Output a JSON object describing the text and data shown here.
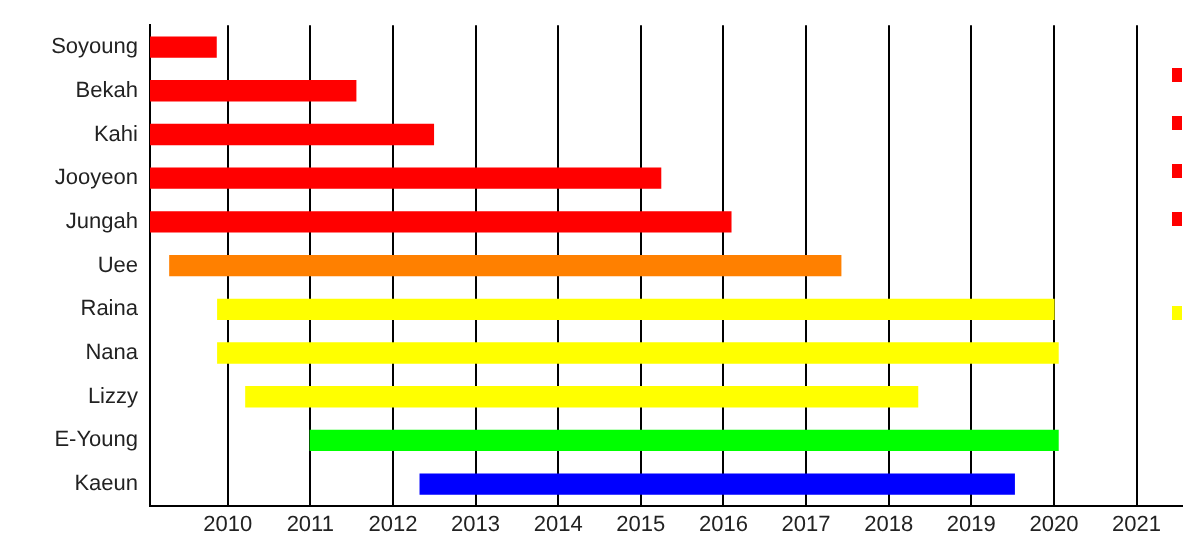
{
  "chart_data": {
    "type": "bar",
    "orientation": "horizontal",
    "categories": [
      "Soyoung",
      "Bekah",
      "Kahi",
      "Jooyeon",
      "Jungah",
      "Uee",
      "Raina",
      "Nana",
      "Lizzy",
      "E-Young",
      "Kaeun"
    ],
    "base": [
      2009.06,
      2009.06,
      2009.06,
      2009.06,
      2009.06,
      2009.3,
      2009.88,
      2009.88,
      2010.22,
      2011.0,
      2012.33
    ],
    "values": [
      0.8,
      2.49,
      3.43,
      6.18,
      7.03,
      8.12,
      10.12,
      10.17,
      8.13,
      9.05,
      7.19
    ],
    "colors": [
      "#ff0000",
      "#ff0000",
      "#ff0000",
      "#ff0000",
      "#ff0000",
      "#ff8000",
      "#ffff00",
      "#ffff00",
      "#ffff00",
      "#00ff00",
      "#0000ff"
    ],
    "xlim": [
      2009.06,
      2021.55
    ],
    "xticks": [
      2010,
      2011,
      2012,
      2013,
      2014,
      2015,
      2016,
      2017,
      2018,
      2019,
      2020,
      2021
    ],
    "grid": "x"
  }
}
